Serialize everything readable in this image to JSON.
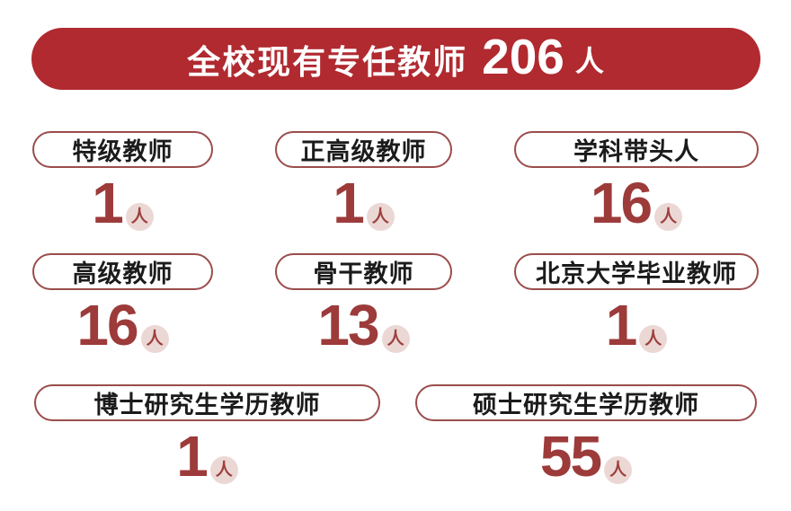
{
  "banner": {
    "prefix": "全校现有专任教师",
    "count": "206",
    "unit": "人",
    "bg_color": "#B02A30",
    "text_color": "#FFFFFF"
  },
  "icons": {
    "person_glyph": "人"
  },
  "colors": {
    "banner_red": "#B02A30",
    "number_red": "#9C3B3A",
    "pill_border": "#9B4D4C",
    "badge_bg": "#EBD8D5",
    "badge_glyph": "#9E403E",
    "label_text": "#1B1B1B"
  },
  "stats": [
    {
      "label": "特级教师",
      "count": "1"
    },
    {
      "label": "正高级教师",
      "count": "1"
    },
    {
      "label": "学科带头人",
      "count": "16"
    },
    {
      "label": "高级教师",
      "count": "16"
    },
    {
      "label": "骨干教师",
      "count": "13"
    },
    {
      "label": "北京大学毕业教师",
      "count": "1"
    },
    {
      "label": "博士研究生学历教师",
      "count": "1"
    },
    {
      "label": "硕士研究生学历教师",
      "count": "55"
    }
  ],
  "chart_data": {
    "type": "table",
    "title": "全校现有专任教师 206 人",
    "total": {
      "label": "全校现有专任教师",
      "value": 206,
      "unit": "人"
    },
    "categories": [
      "特级教师",
      "正高级教师",
      "学科带头人",
      "高级教师",
      "骨干教师",
      "北京大学毕业教师",
      "博士研究生学历教师",
      "硕士研究生学历教师"
    ],
    "values": [
      1,
      1,
      16,
      16,
      13,
      1,
      1,
      55
    ],
    "unit": "人",
    "layout": "stat-badges-infographic"
  }
}
